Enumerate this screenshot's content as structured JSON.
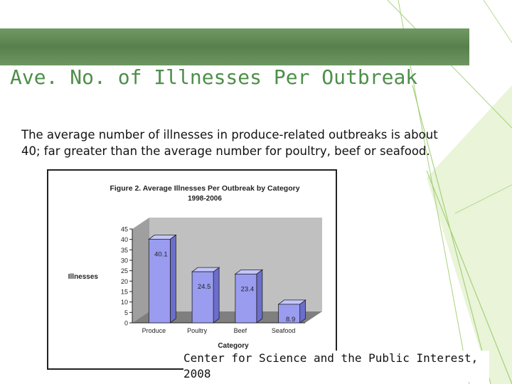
{
  "slide": {
    "title": "Ave. No. of Illnesses Per Outbreak",
    "caption_lines": [
      "The average number of illnesses in produce-related outbreaks is about",
      "40; far greater than the average number for poultry, beef or seafood."
    ],
    "source_lines": [
      "Center for Science and the Public Interest,",
      "2008"
    ],
    "colors": {
      "banner": "#6b9660",
      "title": "#4e8f4a",
      "accent_lines": "#8fc66a"
    }
  },
  "chart_data": {
    "type": "bar",
    "title": "Figure 2. Average Illnesses Per Outbreak by Category",
    "subtitle": "1998-2006",
    "xlabel": "Category",
    "ylabel": "Illnesses",
    "categories": [
      "Produce",
      "Poultry",
      "Beef",
      "Seafood"
    ],
    "values": [
      40.1,
      24.5,
      23.4,
      8.9
    ],
    "data_labels": [
      "40.1",
      "24.5",
      "23.4",
      "8.9"
    ],
    "ylim": [
      0,
      45
    ],
    "yticks": [
      0,
      5,
      10,
      15,
      20,
      25,
      30,
      35,
      40,
      45
    ],
    "bar_color": "#9a9cf0",
    "wall_color": "#c0c0c0",
    "style": "3d",
    "grid": false
  }
}
